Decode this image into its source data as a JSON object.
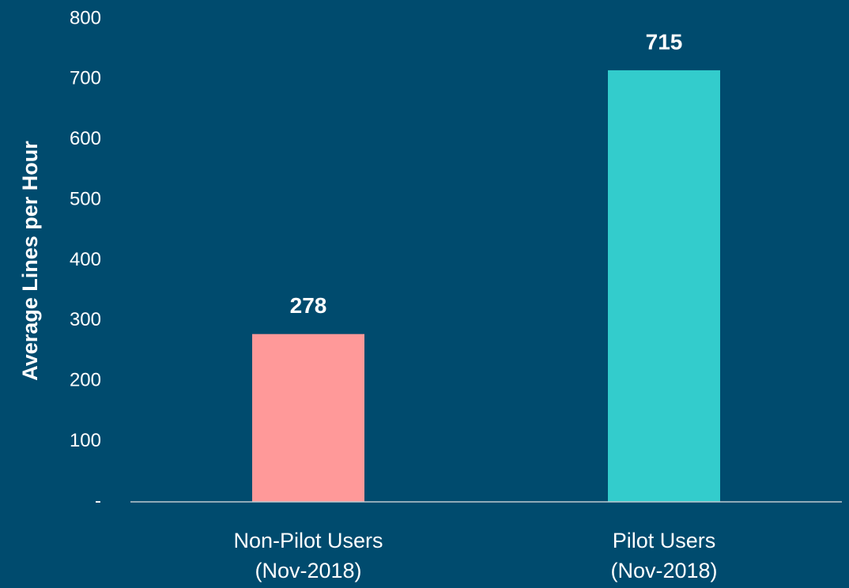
{
  "chart_data": {
    "type": "bar",
    "ylabel": "Average Lines per Hour",
    "categories": [
      [
        "Non-Pilot Users",
        "(Nov-2018)"
      ],
      [
        "Pilot Users",
        "(Nov-2018)"
      ]
    ],
    "values": [
      278,
      715
    ],
    "colors": [
      "#ff9999",
      "#33cccc"
    ],
    "ylim": [
      0,
      800
    ],
    "yticks": [
      {
        "value": 0,
        "label": "-"
      },
      100,
      200,
      300,
      400,
      500,
      600,
      700,
      800
    ],
    "grid": false
  }
}
